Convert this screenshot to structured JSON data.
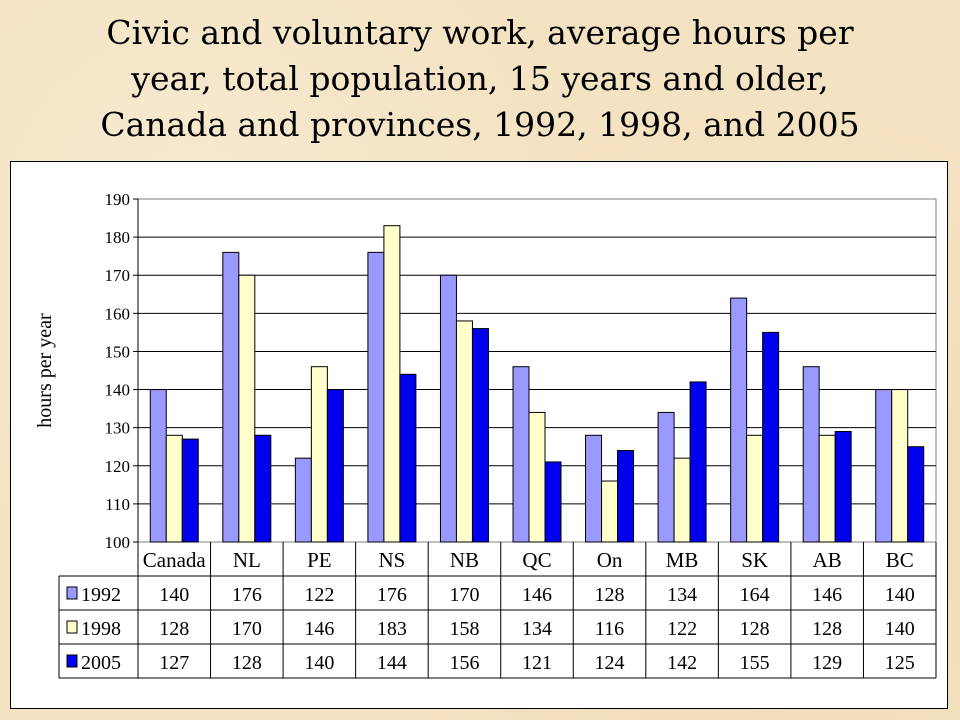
{
  "title_lines": [
    "Civic and voluntary work, average hours per",
    "year, total population, 15 years and older,",
    "Canada and provinces, 1992, 1998, and 2005"
  ],
  "chart_data": {
    "type": "bar",
    "categories": [
      "Canada",
      "NL",
      "PE",
      "NS",
      "NB",
      "QC",
      "On",
      "MB",
      "SK",
      "AB",
      "BC"
    ],
    "series": [
      {
        "name": "1992",
        "color": "#9999ff",
        "values": [
          140,
          176,
          122,
          176,
          170,
          146,
          128,
          134,
          164,
          146,
          140
        ]
      },
      {
        "name": "1998",
        "color": "#ffffcc",
        "values": [
          128,
          170,
          146,
          183,
          158,
          134,
          116,
          122,
          128,
          128,
          140
        ]
      },
      {
        "name": "2005",
        "color": "#0000ee",
        "values": [
          127,
          128,
          140,
          144,
          156,
          121,
          124,
          142,
          155,
          129,
          125
        ]
      }
    ],
    "ylabel": "hours per year",
    "xlabel": "",
    "ylim": [
      100,
      190
    ],
    "ytick_step": 10,
    "grid": true,
    "data_table": true
  }
}
